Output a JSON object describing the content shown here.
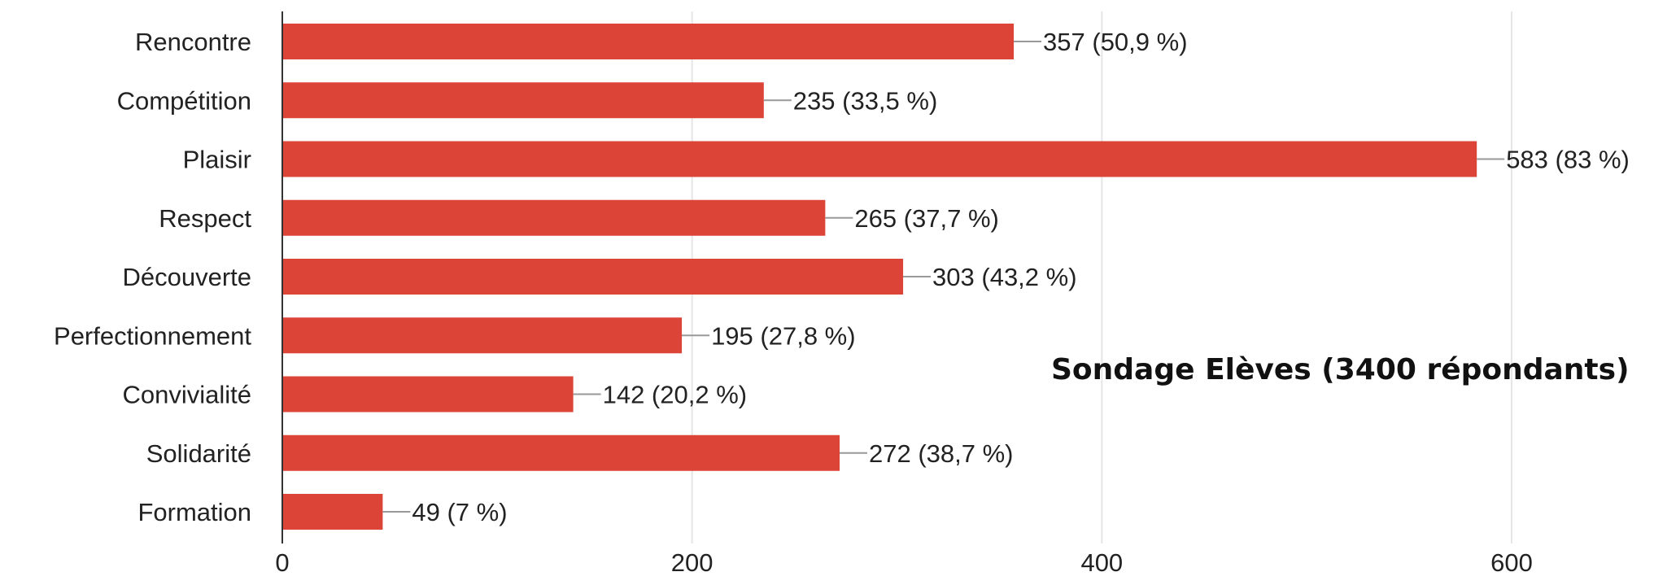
{
  "chart_data": {
    "type": "bar",
    "orientation": "horizontal",
    "categories": [
      "Rencontre",
      "Compétition",
      "Plaisir",
      "Respect",
      "Découverte",
      "Perfectionnement",
      "Convivialité",
      "Solidarité",
      "Formation"
    ],
    "values": [
      357,
      235,
      583,
      265,
      303,
      195,
      142,
      272,
      49
    ],
    "data_labels": [
      "357 (50,9 %)",
      "235 (33,5 %)",
      "583 (83 %)",
      "265 (37,7 %)",
      "303 (43,2 %)",
      "195 (27,8 %)",
      "142 (20,2 %)",
      "272 (38,7 %)",
      "49 (7 %)"
    ],
    "xlim": [
      0,
      600
    ],
    "xticks": [
      0,
      200,
      400,
      600
    ],
    "xtick_labels": [
      "0",
      "200",
      "400",
      "600"
    ],
    "annotation": "Sondage Elèves (3400 répondants)",
    "grid": "vertical",
    "legend": "none",
    "colors": {
      "bar": "#db4437",
      "grid": "#e6e6e6",
      "axis": "#333333",
      "text": "#222222",
      "leader": "#999999"
    }
  }
}
